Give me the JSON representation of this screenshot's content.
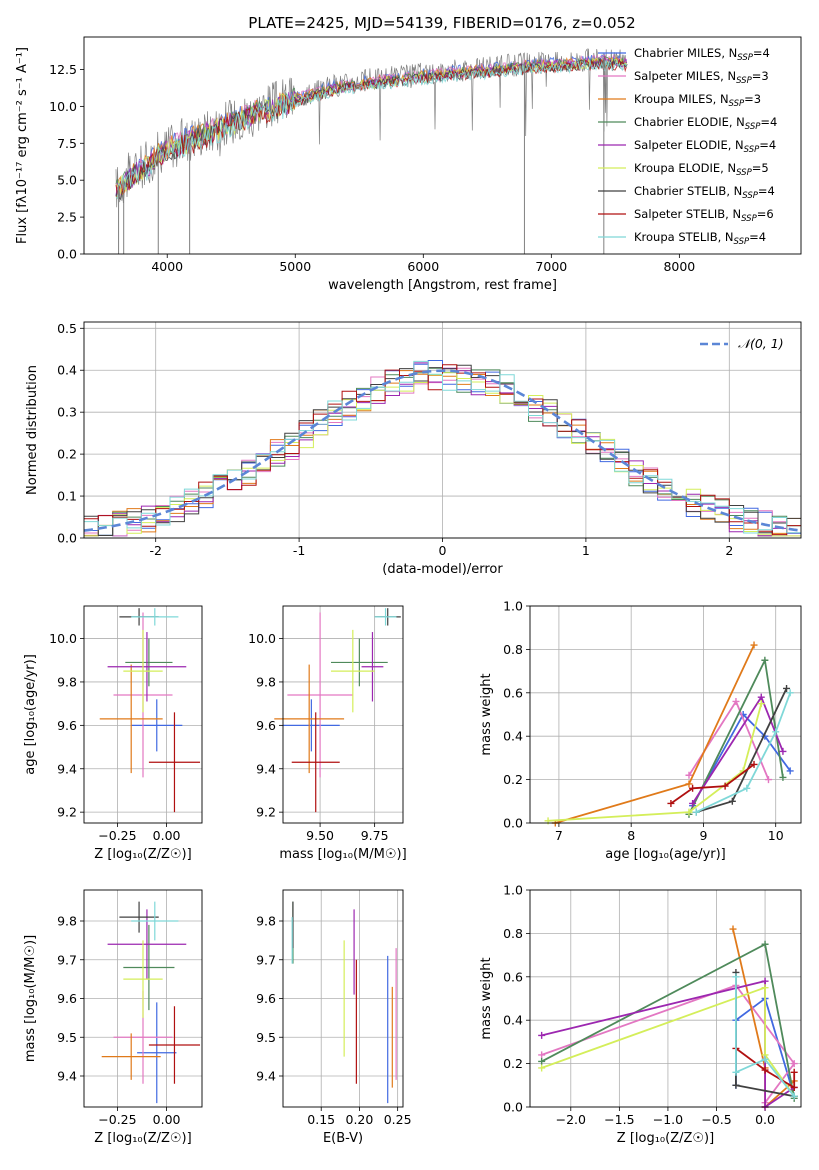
{
  "figure_title": "PLATE=2425, MJD=54139, FIBERID=0176, z=0.052",
  "models": [
    {
      "name": "Chabrier MILES",
      "nssp": "4",
      "color": "#4169e1"
    },
    {
      "name": "Salpeter MILES",
      "nssp": "3",
      "color": "#e377c2"
    },
    {
      "name": "Kroupa MILES",
      "nssp": "3",
      "color": "#e07a1a"
    },
    {
      "name": "Chabrier ELODIE",
      "nssp": "4",
      "color": "#4f8a5b"
    },
    {
      "name": "Salpeter ELODIE",
      "nssp": "4",
      "color": "#9c27b0"
    },
    {
      "name": "Kroupa ELODIE",
      "nssp": "5",
      "color": "#d4ee5a"
    },
    {
      "name": "Chabrier STELIB",
      "nssp": "4",
      "color": "#404040"
    },
    {
      "name": "Salpeter STELIB",
      "nssp": "6",
      "color": "#b01010"
    },
    {
      "name": "Kroupa STELIB",
      "nssp": "4",
      "color": "#7fd8d8"
    }
  ],
  "chart_data": [
    {
      "id": "spectrum",
      "type": "line",
      "xlabel": "wavelength [Angstrom, rest frame]",
      "ylabel": "Flux [fλ10⁻¹⁷ erg cm⁻² s⁻¹ A⁻¹]",
      "xlim": [
        3350,
        8950
      ],
      "ylim": [
        0,
        14.7
      ],
      "xticks": [
        4000,
        5000,
        6000,
        7000,
        8000
      ],
      "yticks": [
        0.0,
        2.5,
        5.0,
        7.5,
        10.0,
        12.5
      ],
      "legend_position": "right",
      "data_color": "#808080",
      "continuum": {
        "x": [
          3600,
          3700,
          3850,
          3950,
          4100,
          4300,
          4500,
          4700,
          5000,
          5300,
          5600,
          5900,
          6200,
          6500,
          6800,
          7100,
          7400,
          7600
        ],
        "y": [
          4.5,
          5.3,
          6.2,
          7.0,
          7.6,
          8.3,
          9.0,
          9.8,
          10.6,
          11.4,
          11.8,
          12.1,
          12.4,
          12.6,
          12.9,
          13.0,
          13.2,
          13.1
        ]
      }
    },
    {
      "id": "residuals",
      "type": "step",
      "xlabel": "(data-model)/error",
      "ylabel": "Normed distribution",
      "xlim": [
        -2.5,
        2.5
      ],
      "ylim": [
        0,
        0.515
      ],
      "xticks": [
        -2,
        -1,
        0,
        1,
        2
      ],
      "yticks": [
        0.0,
        0.1,
        0.2,
        0.3,
        0.4,
        0.5
      ],
      "legend": [
        {
          "label": "𝒩(0, 1)",
          "color": "#5b86d6",
          "style": "dashed"
        }
      ],
      "legend_position": "top-right",
      "bin_width": 0.1
    },
    {
      "id": "age_vs_Z",
      "type": "scatter",
      "xlabel": "Z [log₁₀(Z/Z☉)]",
      "ylabel": "age  [log₁₀(age/yr)]",
      "xlim": [
        -0.42,
        0.18
      ],
      "ylim": [
        9.15,
        10.15
      ],
      "xticks": [
        -0.25,
        0.0
      ],
      "xtick_labels": [
        "−0.25",
        "0.00"
      ],
      "yticks": [
        9.2,
        9.4,
        9.6,
        9.8,
        10.0
      ],
      "points": [
        {
          "model": 0,
          "x": -0.05,
          "y": 9.6,
          "xerr": 0.13,
          "yerr": 0.12
        },
        {
          "model": 1,
          "x": -0.12,
          "y": 9.74,
          "xerr": 0.15,
          "yerr": 0.38
        },
        {
          "model": 2,
          "x": -0.18,
          "y": 9.63,
          "xerr": 0.16,
          "yerr": 0.25
        },
        {
          "model": 3,
          "x": -0.09,
          "y": 9.89,
          "xerr": 0.12,
          "yerr": 0.11
        },
        {
          "model": 4,
          "x": -0.1,
          "y": 9.87,
          "xerr": 0.2,
          "yerr": 0.16
        },
        {
          "model": 5,
          "x": -0.12,
          "y": 9.85,
          "xerr": 0.1,
          "yerr": 0.19
        },
        {
          "model": 6,
          "x": -0.14,
          "y": 10.1,
          "xerr": 0.1,
          "yerr": 0.04
        },
        {
          "model": 7,
          "x": 0.04,
          "y": 9.43,
          "xerr": 0.13,
          "yerr": 0.23
        },
        {
          "model": 8,
          "x": -0.06,
          "y": 10.1,
          "xerr": 0.12,
          "yerr": 0.04
        }
      ]
    },
    {
      "id": "age_vs_mass",
      "type": "scatter",
      "xlabel": "mass [log₁₀(M/M☉)]",
      "ylabel": "",
      "xlim": [
        9.33,
        9.88
      ],
      "ylim": [
        9.15,
        10.15
      ],
      "xticks": [
        9.5,
        9.75
      ],
      "xtick_labels": [
        "9.50",
        "9.75"
      ],
      "yticks": [
        9.2,
        9.4,
        9.6,
        9.8,
        10.0
      ],
      "points": [
        {
          "model": 0,
          "x": 9.46,
          "y": 9.6,
          "xerr": 0.13,
          "yerr": 0.12
        },
        {
          "model": 1,
          "x": 9.5,
          "y": 9.74,
          "xerr": 0.15,
          "yerr": 0.38
        },
        {
          "model": 2,
          "x": 9.45,
          "y": 9.63,
          "xerr": 0.16,
          "yerr": 0.25
        },
        {
          "model": 3,
          "x": 9.68,
          "y": 9.89,
          "xerr": 0.13,
          "yerr": 0.11
        },
        {
          "model": 4,
          "x": 9.74,
          "y": 9.87,
          "xerr": 0.05,
          "yerr": 0.16
        },
        {
          "model": 5,
          "x": 9.65,
          "y": 9.85,
          "xerr": 0.1,
          "yerr": 0.19
        },
        {
          "model": 6,
          "x": 9.81,
          "y": 10.1,
          "xerr": 0.06,
          "yerr": 0.04
        },
        {
          "model": 7,
          "x": 9.48,
          "y": 9.43,
          "xerr": 0.11,
          "yerr": 0.23
        },
        {
          "model": 8,
          "x": 9.8,
          "y": 10.1,
          "xerr": 0.05,
          "yerr": 0.04
        }
      ]
    },
    {
      "id": "weight_vs_age",
      "type": "line",
      "xlabel": "age  [log₁₀(age/yr)]",
      "ylabel": "mass weight",
      "xlim": [
        6.6,
        10.35
      ],
      "ylim": [
        0,
        1.0
      ],
      "xticks": [
        7,
        8,
        9,
        10
      ],
      "yticks": [
        0.0,
        0.2,
        0.4,
        0.6,
        0.8,
        1.0
      ],
      "series": [
        {
          "model": 0,
          "x": [
            8.85,
            9.55,
            9.85,
            10.2
          ],
          "y": [
            0.08,
            0.5,
            0.4,
            0.24
          ]
        },
        {
          "model": 1,
          "x": [
            8.8,
            9.45,
            9.9
          ],
          "y": [
            0.22,
            0.56,
            0.2
          ]
        },
        {
          "model": 2,
          "x": [
            6.95,
            8.8,
            9.7
          ],
          "y": [
            0.0,
            0.18,
            0.82
          ]
        },
        {
          "model": 3,
          "x": [
            8.8,
            9.85,
            10.1
          ],
          "y": [
            0.04,
            0.75,
            0.21
          ]
        },
        {
          "model": 4,
          "x": [
            8.85,
            9.8,
            10.1
          ],
          "y": [
            0.09,
            0.58,
            0.33
          ]
        },
        {
          "model": 5,
          "x": [
            6.85,
            8.8,
            9.55,
            9.8
          ],
          "y": [
            0.01,
            0.05,
            0.24,
            0.55
          ]
        },
        {
          "model": 6,
          "x": [
            8.9,
            9.4,
            10.15
          ],
          "y": [
            0.05,
            0.1,
            0.62
          ]
        },
        {
          "model": 7,
          "x": [
            8.55,
            8.85,
            9.3,
            9.7
          ],
          "y": [
            0.09,
            0.16,
            0.17,
            0.27
          ]
        },
        {
          "model": 8,
          "x": [
            8.9,
            9.6,
            10.0,
            10.2
          ],
          "y": [
            0.05,
            0.16,
            0.42,
            0.6
          ]
        }
      ]
    },
    {
      "id": "mass_vs_Z",
      "type": "scatter",
      "xlabel": "Z [log₁₀(Z/Z☉)]",
      "ylabel": "mass [log₁₀(M/M☉)]",
      "xlim": [
        -0.42,
        0.18
      ],
      "ylim": [
        9.32,
        9.88
      ],
      "xticks": [
        -0.25,
        0.0
      ],
      "xtick_labels": [
        "−0.25",
        "0.00"
      ],
      "yticks": [
        9.4,
        9.5,
        9.6,
        9.7,
        9.8
      ],
      "points": [
        {
          "model": 0,
          "x": -0.05,
          "y": 9.46,
          "xerr": 0.1,
          "yerr": 0.13
        },
        {
          "model": 1,
          "x": -0.12,
          "y": 9.5,
          "xerr": 0.15,
          "yerr": 0.12
        },
        {
          "model": 2,
          "x": -0.18,
          "y": 9.45,
          "xerr": 0.15,
          "yerr": 0.06
        },
        {
          "model": 3,
          "x": -0.09,
          "y": 9.68,
          "xerr": 0.13,
          "yerr": 0.11
        },
        {
          "model": 4,
          "x": -0.1,
          "y": 9.74,
          "xerr": 0.2,
          "yerr": 0.09
        },
        {
          "model": 5,
          "x": -0.12,
          "y": 9.65,
          "xerr": 0.1,
          "yerr": 0.1
        },
        {
          "model": 6,
          "x": -0.14,
          "y": 9.81,
          "xerr": 0.1,
          "yerr": 0.04
        },
        {
          "model": 7,
          "x": 0.04,
          "y": 9.48,
          "xerr": 0.13,
          "yerr": 0.1
        },
        {
          "model": 8,
          "x": -0.06,
          "y": 9.8,
          "xerr": 0.12,
          "yerr": 0.05
        }
      ]
    },
    {
      "id": "mass_vs_ebv",
      "type": "scatter",
      "xlabel": "E(B-V)",
      "ylabel": "",
      "xlim": [
        0.1,
        0.257
      ],
      "ylim": [
        9.32,
        9.88
      ],
      "xticks": [
        0.15,
        0.2,
        0.25
      ],
      "xtick_labels": [
        "0.15",
        "0.20",
        "0.25"
      ],
      "yticks": [
        9.4,
        9.5,
        9.6,
        9.7,
        9.8
      ],
      "points": [
        {
          "model": 0,
          "x": 0.237,
          "y": 9.52,
          "xerr": 0,
          "yerr": 0.19
        },
        {
          "model": 1,
          "x": 0.248,
          "y": 9.56,
          "xerr": 0,
          "yerr": 0.17
        },
        {
          "model": 2,
          "x": 0.243,
          "y": 9.5,
          "xerr": 0,
          "yerr": 0.13
        },
        {
          "model": 3,
          "x": 0.113,
          "y": 9.77,
          "xerr": 0,
          "yerr": 0.08
        },
        {
          "model": 4,
          "x": 0.193,
          "y": 9.72,
          "xerr": 0,
          "yerr": 0.11
        },
        {
          "model": 5,
          "x": 0.18,
          "y": 9.6,
          "xerr": 0,
          "yerr": 0.15
        },
        {
          "model": 6,
          "x": 0.113,
          "y": 9.79,
          "xerr": 0,
          "yerr": 0.06
        },
        {
          "model": 7,
          "x": 0.196,
          "y": 9.54,
          "xerr": 0,
          "yerr": 0.16
        },
        {
          "model": 8,
          "x": 0.112,
          "y": 9.75,
          "xerr": 0,
          "yerr": 0.06
        }
      ]
    },
    {
      "id": "weight_vs_Z",
      "type": "line",
      "xlabel": "Z [log₁₀(Z/Z☉)]",
      "ylabel": "mass weight",
      "xlim": [
        -2.42,
        0.37
      ],
      "ylim": [
        0,
        1.0
      ],
      "xticks": [
        -2.0,
        -1.5,
        -1.0,
        -0.5,
        0.0
      ],
      "xtick_labels": [
        "−2.0",
        "−1.5",
        "−1.0",
        "−0.5",
        "0.0"
      ],
      "yticks": [
        0.0,
        0.2,
        0.4,
        0.6,
        0.8,
        1.0
      ],
      "series": [
        {
          "model": 0,
          "x": [
            -0.3,
            -0.3,
            0.0,
            0.3
          ],
          "y": [
            0.1,
            0.4,
            0.5,
            0.05
          ]
        },
        {
          "model": 1,
          "x": [
            -2.3,
            -0.3,
            0.3,
            0.0
          ],
          "y": [
            0.24,
            0.56,
            0.2,
            0.02
          ]
        },
        {
          "model": 2,
          "x": [
            -0.33,
            0.0,
            0.0,
            0.3
          ],
          "y": [
            0.82,
            0.18,
            0.0,
            0.12
          ]
        },
        {
          "model": 3,
          "x": [
            -2.3,
            0.0,
            0.3
          ],
          "y": [
            0.21,
            0.75,
            0.04
          ]
        },
        {
          "model": 4,
          "x": [
            -2.3,
            0.0,
            0.0,
            0.3
          ],
          "y": [
            0.33,
            0.58,
            0.0,
            0.09
          ]
        },
        {
          "model": 5,
          "x": [
            -2.3,
            0.0,
            0.0,
            0.3
          ],
          "y": [
            0.18,
            0.55,
            0.24,
            0.05
          ]
        },
        {
          "model": 6,
          "x": [
            -0.3,
            -0.3,
            0.3
          ],
          "y": [
            0.62,
            0.1,
            0.05
          ]
        },
        {
          "model": 7,
          "x": [
            -0.3,
            0.0,
            0.3,
            0.3
          ],
          "y": [
            0.27,
            0.17,
            0.09,
            0.16
          ]
        },
        {
          "model": 8,
          "x": [
            -0.3,
            -0.3,
            0.0,
            0.3
          ],
          "y": [
            0.6,
            0.16,
            0.22,
            0.05
          ]
        }
      ]
    }
  ]
}
